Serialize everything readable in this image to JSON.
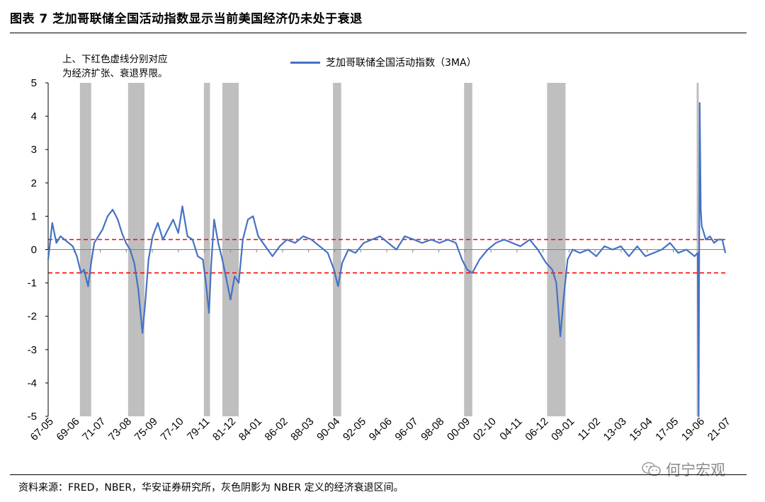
{
  "header": {
    "title": "图表 7  芝加哥联储全国活动指数显示当前美国经济仍未处于衰退"
  },
  "annotation": {
    "line1": "上、下红色虚线分别对应",
    "line2": "为经济扩张、衰退界限。"
  },
  "footer": {
    "source": "资料来源：FRED，NBER，华安证券研究所，灰色阴影为 NBER 定义的经济衰退区间。"
  },
  "watermark": {
    "text": "何宁宏观",
    "icon": "wechat-icon"
  },
  "colors": {
    "series": "#4472c4",
    "threshold": "#ff0000",
    "recession": "#bfbfbf",
    "axis": "#000000"
  },
  "chart_data": {
    "type": "line",
    "title": "",
    "xlabel": "",
    "ylabel": "",
    "ylim": [
      -5,
      5
    ],
    "yticks": [
      5,
      4,
      3,
      2,
      1,
      0,
      -1,
      -2,
      -3,
      -4,
      -5
    ],
    "xlim": [
      "1967-05",
      "2022-06"
    ],
    "xticks": [
      "67-05",
      "69-06",
      "71-07",
      "73-08",
      "75-09",
      "77-10",
      "79-11",
      "81-12",
      "84-01",
      "86-02",
      "88-03",
      "90-04",
      "92-05",
      "94-06",
      "96-07",
      "98-08",
      "00-09",
      "02-10",
      "04-11",
      "06-12",
      "09-01",
      "11-02",
      "13-03",
      "15-04",
      "17-05",
      "19-06",
      "21-07"
    ],
    "legend_position": "top",
    "thresholds": [
      {
        "value": 0.3,
        "style": "dashed",
        "color": "#ff0000"
      },
      {
        "value": -0.7,
        "style": "dashed",
        "color": "#ff0000"
      }
    ],
    "recessions": [
      [
        "1969-12",
        "1970-11"
      ],
      [
        "1973-11",
        "1975-03"
      ],
      [
        "1980-01",
        "1980-07"
      ],
      [
        "1981-07",
        "1982-11"
      ],
      [
        "1990-07",
        "1991-03"
      ],
      [
        "2001-03",
        "2001-11"
      ],
      [
        "2007-12",
        "2009-06"
      ],
      [
        "2020-02",
        "2020-04"
      ]
    ],
    "series": [
      {
        "name": "芝加哥联储全国活动指数（3MA）",
        "x": [
          "1967-05",
          "1967-09",
          "1968-01",
          "1968-05",
          "1968-09",
          "1969-01",
          "1969-05",
          "1969-09",
          "1970-01",
          "1970-04",
          "1970-08",
          "1970-11",
          "1971-02",
          "1971-06",
          "1971-10",
          "1972-03",
          "1972-08",
          "1973-01",
          "1973-05",
          "1973-09",
          "1974-01",
          "1974-05",
          "1974-09",
          "1975-01",
          "1975-04",
          "1975-07",
          "1975-11",
          "1976-04",
          "1976-09",
          "1977-02",
          "1977-07",
          "1977-12",
          "1978-04",
          "1978-09",
          "1979-02",
          "1979-07",
          "1979-12",
          "1980-03",
          "1980-06",
          "1980-08",
          "1980-11",
          "1981-03",
          "1981-07",
          "1981-11",
          "1982-03",
          "1982-07",
          "1982-11",
          "1983-03",
          "1983-08",
          "1984-01",
          "1984-06",
          "1985-01",
          "1985-08",
          "1986-03",
          "1986-10",
          "1987-06",
          "1988-02",
          "1988-10",
          "1989-06",
          "1990-02",
          "1990-08",
          "1990-12",
          "1991-04",
          "1991-10",
          "1992-05",
          "1993-01",
          "1993-09",
          "1994-05",
          "1995-01",
          "1995-09",
          "1996-05",
          "1997-02",
          "1997-10",
          "1998-07",
          "1999-03",
          "1999-11",
          "2000-07",
          "2001-01",
          "2001-06",
          "2001-11",
          "2002-06",
          "2003-02",
          "2003-10",
          "2004-06",
          "2005-02",
          "2005-10",
          "2006-07",
          "2007-03",
          "2007-11",
          "2008-05",
          "2008-09",
          "2009-01",
          "2009-04",
          "2009-08",
          "2010-01",
          "2010-08",
          "2011-04",
          "2011-12",
          "2012-08",
          "2013-04",
          "2013-12",
          "2014-08",
          "2015-04",
          "2015-12",
          "2016-08",
          "2017-04",
          "2017-12",
          "2018-08",
          "2019-04",
          "2019-12",
          "2020-03",
          "2020-04",
          "2020-05",
          "2020-06",
          "2020-07",
          "2020-08",
          "2020-11",
          "2021-03",
          "2021-07",
          "2021-11",
          "2022-03",
          "2022-06"
        ],
        "values": [
          -0.3,
          0.8,
          0.2,
          0.4,
          0.3,
          0.2,
          0.1,
          -0.2,
          -0.7,
          -0.6,
          -1.1,
          -0.4,
          0.2,
          0.4,
          0.6,
          1.0,
          1.2,
          0.9,
          0.5,
          0.2,
          0.0,
          -0.4,
          -1.2,
          -2.5,
          -1.5,
          -0.3,
          0.4,
          0.8,
          0.3,
          0.6,
          0.9,
          0.5,
          1.3,
          0.4,
          0.3,
          -0.2,
          -0.3,
          -1.0,
          -1.9,
          -0.5,
          0.9,
          0.2,
          -0.3,
          -0.9,
          -1.5,
          -0.8,
          -1.0,
          0.3,
          0.9,
          1.0,
          0.4,
          0.1,
          -0.2,
          0.1,
          0.3,
          0.2,
          0.4,
          0.3,
          0.1,
          -0.1,
          -0.6,
          -1.1,
          -0.4,
          0.0,
          -0.1,
          0.2,
          0.3,
          0.4,
          0.2,
          0.0,
          0.4,
          0.3,
          0.2,
          0.3,
          0.2,
          0.3,
          0.2,
          -0.3,
          -0.6,
          -0.7,
          -0.3,
          0.0,
          0.2,
          0.3,
          0.2,
          0.1,
          0.3,
          0.0,
          -0.4,
          -0.6,
          -1.0,
          -2.6,
          -1.5,
          -0.3,
          0.0,
          -0.1,
          0.0,
          -0.2,
          0.1,
          0.0,
          0.1,
          -0.2,
          0.1,
          -0.2,
          -0.1,
          0.0,
          0.2,
          -0.1,
          0.0,
          -0.2,
          -0.1,
          -5.0,
          4.4,
          1.2,
          0.7,
          0.6,
          0.3,
          0.4,
          0.2,
          0.3,
          0.3,
          -0.1
        ]
      }
    ]
  }
}
